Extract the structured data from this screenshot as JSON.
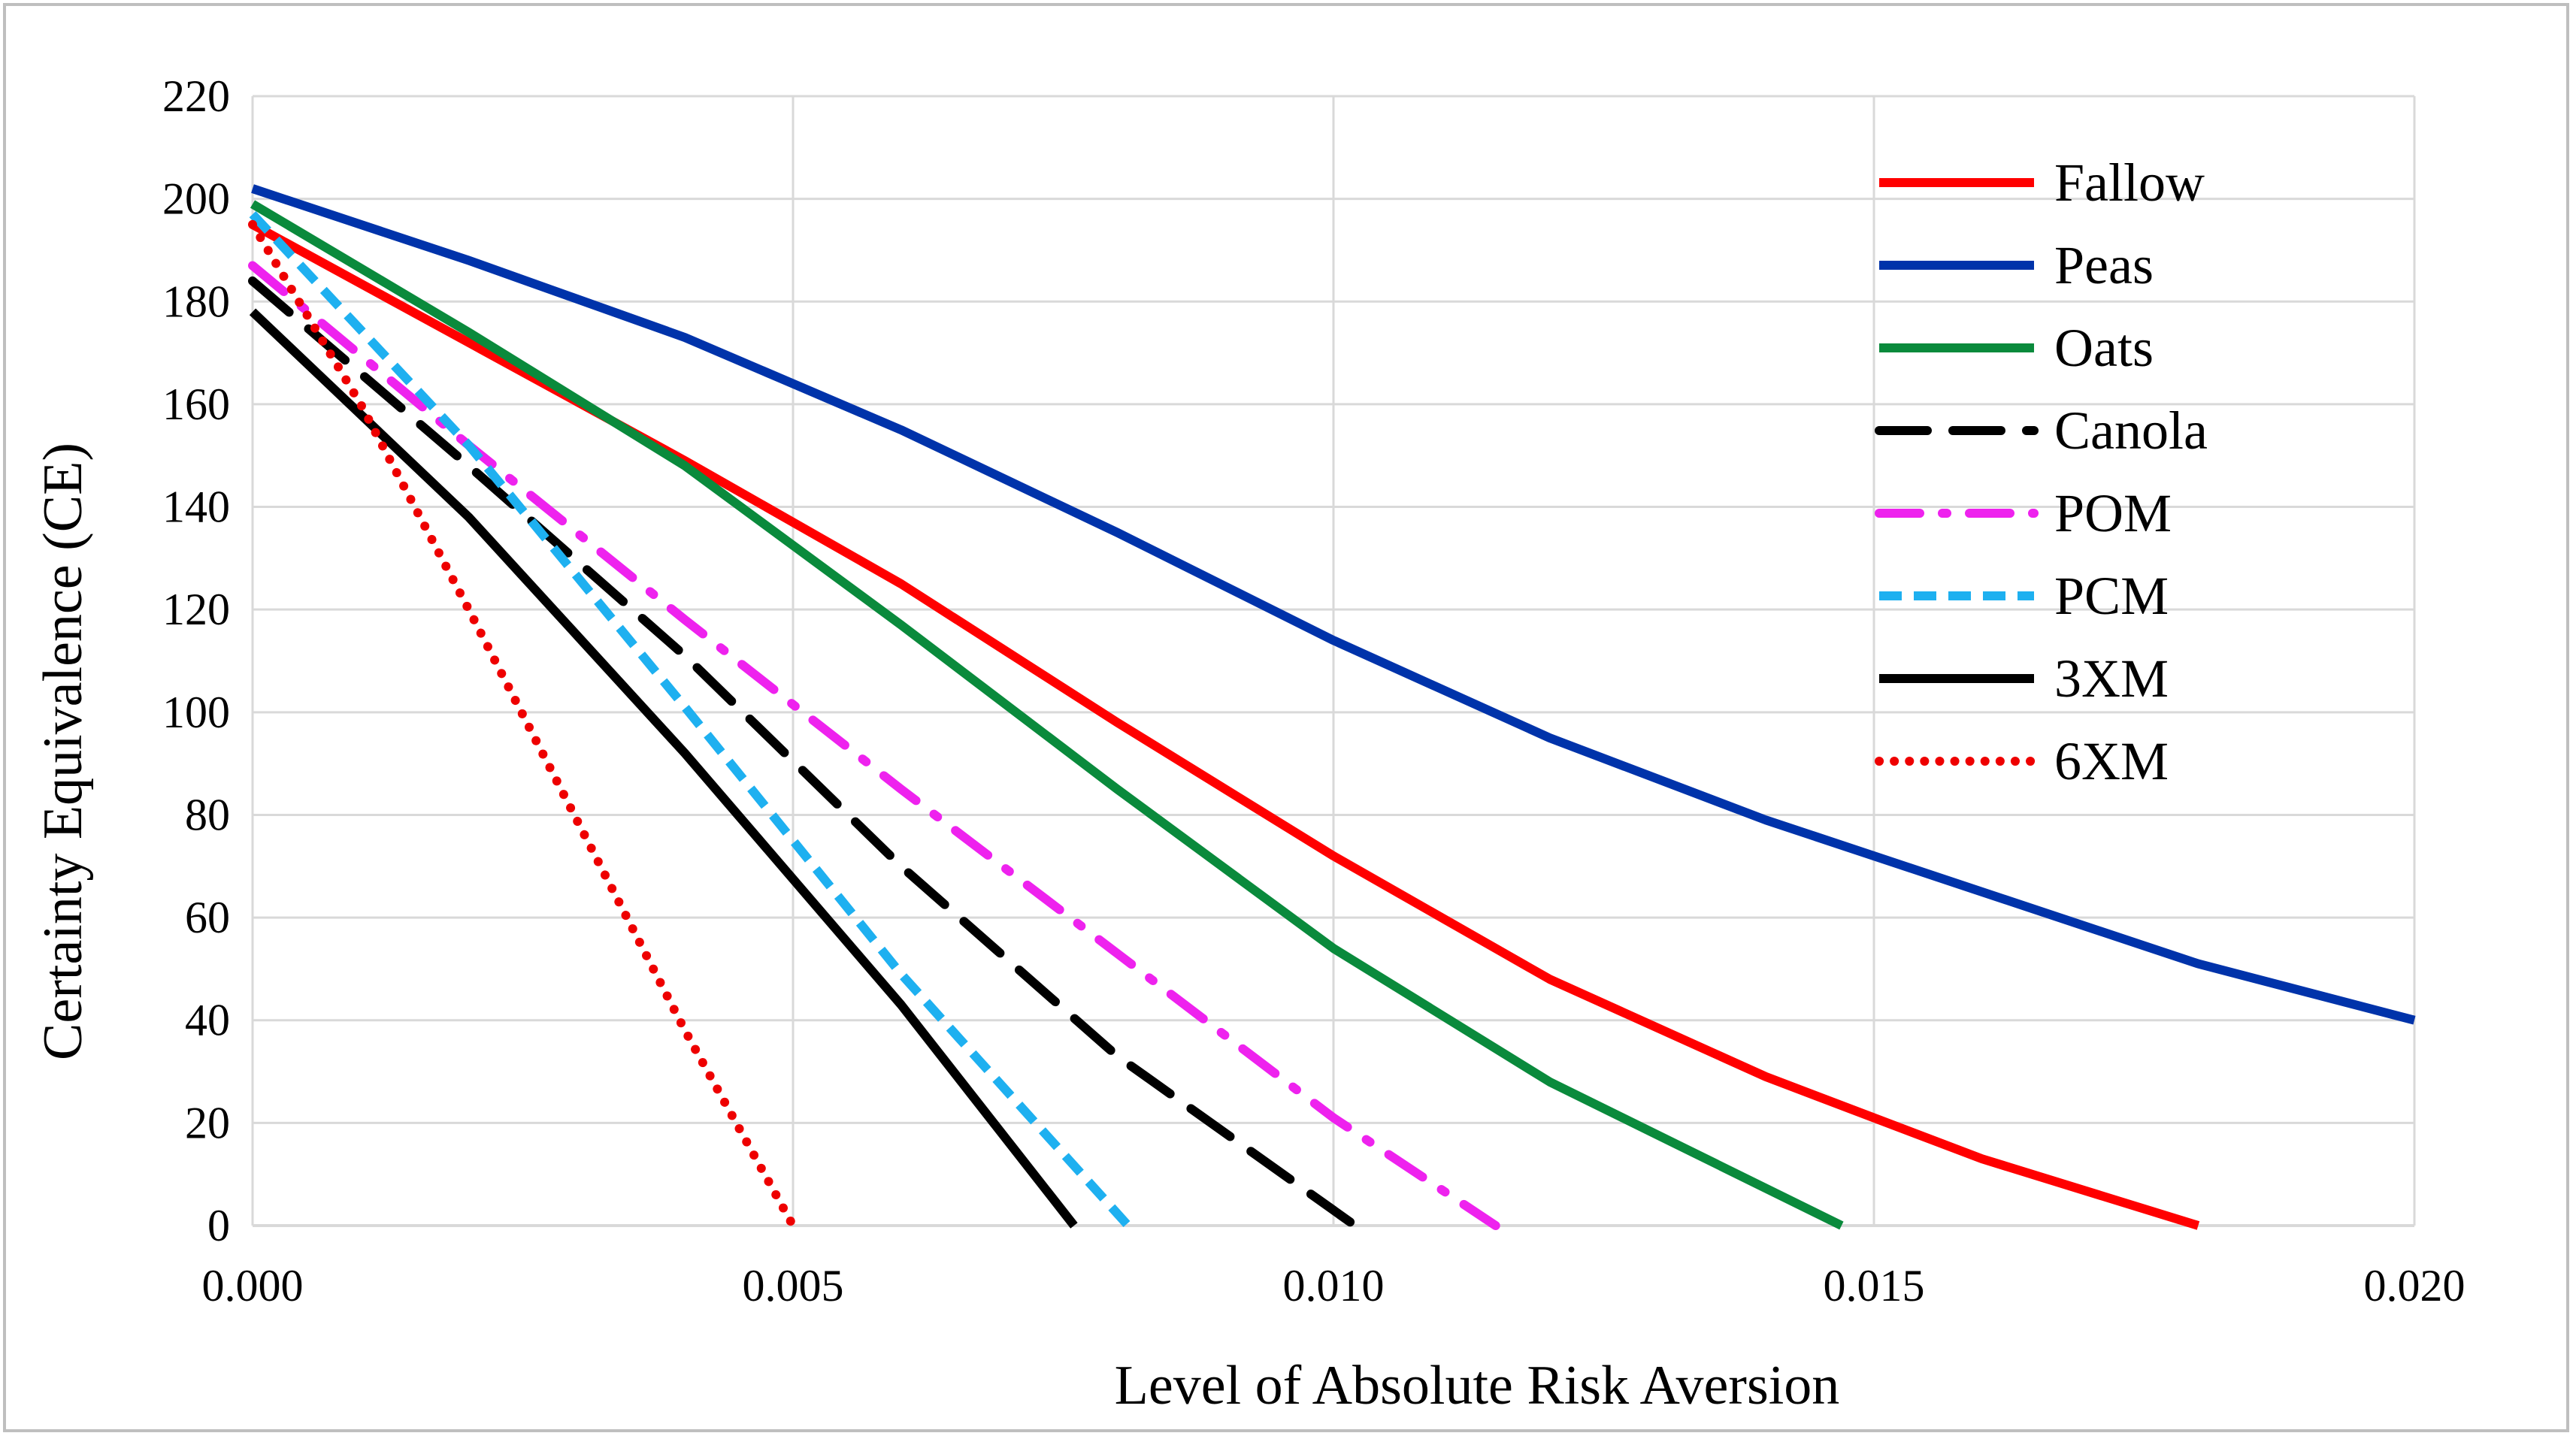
{
  "chart_data": {
    "type": "line",
    "title": "",
    "xlabel": "Level of Absolute Risk Aversion",
    "ylabel": "Certainty Equivalence (CE)",
    "xlim": [
      0,
      0.02
    ],
    "ylim": [
      0,
      220
    ],
    "grid": true,
    "legend_position": "top-right",
    "x_ticks": [
      0,
      0.005,
      0.01,
      0.015,
      0.02
    ],
    "x_tick_labels": [
      "0.000",
      "0.005",
      "0.010",
      "0.015",
      "0.020"
    ],
    "y_ticks": [
      0,
      20,
      40,
      60,
      80,
      100,
      120,
      140,
      160,
      180,
      200,
      220
    ],
    "y_tick_labels": [
      "0",
      "20",
      "40",
      "60",
      "80",
      "100",
      "120",
      "140",
      "160",
      "180",
      "200",
      "220"
    ],
    "series": [
      {
        "name": "Fallow",
        "color": "#ff0000",
        "style": "solid",
        "x": [
          0,
          0.002,
          0.004,
          0.006,
          0.008,
          0.01,
          0.012,
          0.014,
          0.016,
          0.018
        ],
        "y": [
          195,
          172,
          149,
          125,
          98,
          72,
          48,
          29,
          13,
          0
        ]
      },
      {
        "name": "Peas",
        "color": "#0033aa",
        "style": "solid",
        "x": [
          0,
          0.002,
          0.004,
          0.006,
          0.008,
          0.01,
          0.012,
          0.014,
          0.016,
          0.018,
          0.02
        ],
        "y": [
          202,
          188,
          173,
          155,
          135,
          114,
          95,
          79,
          65,
          51,
          40
        ]
      },
      {
        "name": "Oats",
        "color": "#0a8a3c",
        "style": "solid",
        "x": [
          0,
          0.002,
          0.004,
          0.006,
          0.008,
          0.01,
          0.012,
          0.0147
        ],
        "y": [
          199,
          174,
          148,
          117,
          85,
          54,
          28,
          0
        ]
      },
      {
        "name": "Canola",
        "color": "#000000",
        "style": "longdash",
        "x": [
          0,
          0.002,
          0.004,
          0.006,
          0.008,
          0.0102
        ],
        "y": [
          184,
          148,
          111,
          70,
          33,
          0
        ]
      },
      {
        "name": "POM",
        "color": "#ee22ee",
        "style": "dashdot",
        "x": [
          0,
          0.002,
          0.004,
          0.006,
          0.008,
          0.01,
          0.0115
        ],
        "y": [
          187,
          152,
          118,
          85,
          53,
          21,
          0
        ]
      },
      {
        "name": "PCM",
        "color": "#1eb0f0",
        "style": "dash",
        "x": [
          0,
          0.002,
          0.004,
          0.006,
          0.0081
        ],
        "y": [
          197,
          152,
          101,
          49,
          0
        ]
      },
      {
        "name": "3XM",
        "color": "#000000",
        "style": "solid",
        "x": [
          0,
          0.002,
          0.004,
          0.006,
          0.0076
        ],
        "y": [
          178,
          138,
          92,
          43,
          0
        ]
      },
      {
        "name": "6XM",
        "color": "#ee0000",
        "style": "dotted",
        "x": [
          0,
          0.001,
          0.002,
          0.003,
          0.004,
          0.005
        ],
        "y": [
          195,
          160,
          120,
          79,
          38,
          0
        ]
      }
    ]
  }
}
